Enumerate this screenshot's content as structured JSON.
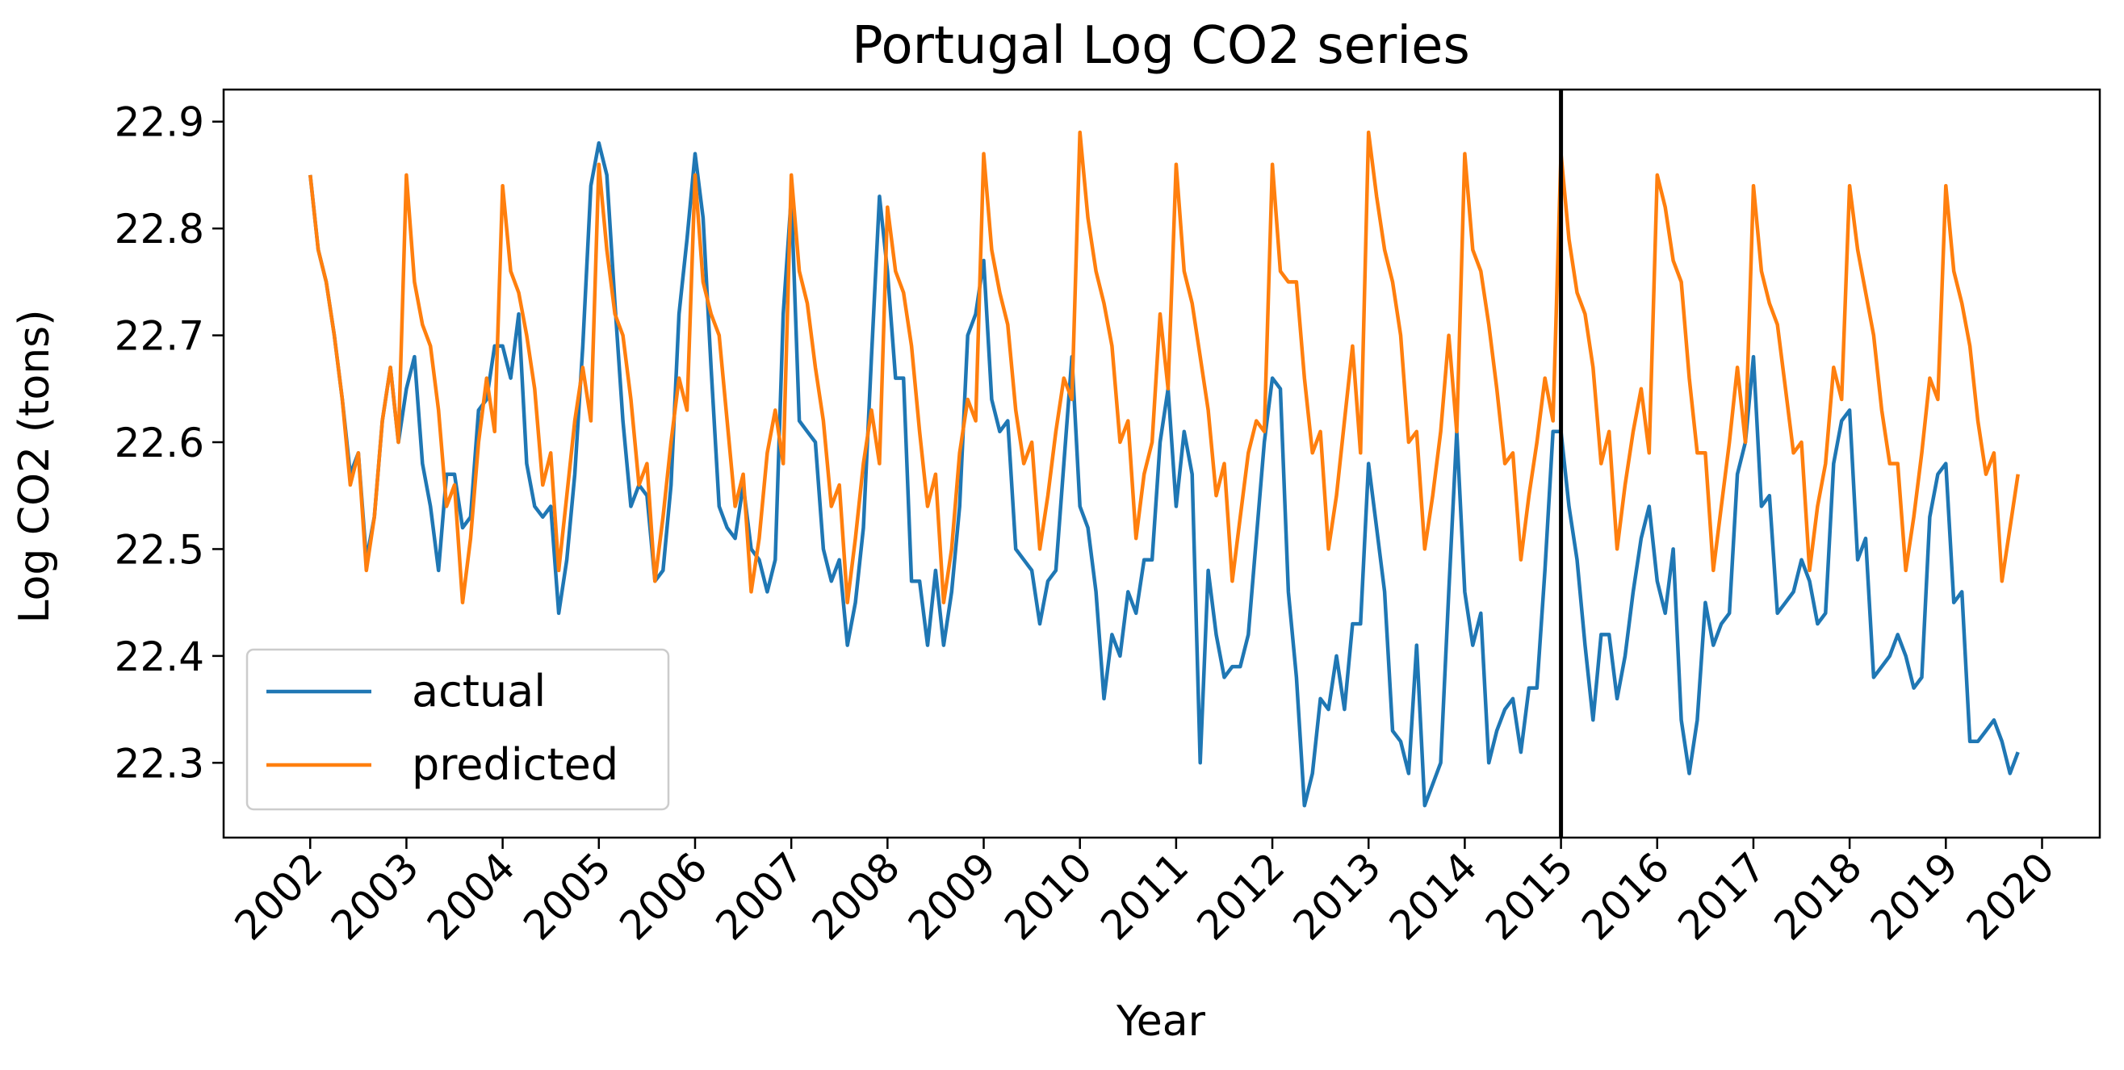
{
  "chart_data": {
    "type": "line",
    "title": "Portugal Log CO2 series",
    "xlabel": "Year",
    "ylabel": "Log CO2 (tons)",
    "xlim": [
      2001.1,
      2020.6
    ],
    "ylim": [
      22.23,
      22.93
    ],
    "x_ticks": [
      "2002",
      "2003",
      "2004",
      "2005",
      "2006",
      "2007",
      "2008",
      "2009",
      "2010",
      "2011",
      "2012",
      "2013",
      "2014",
      "2015",
      "2016",
      "2017",
      "2018",
      "2019",
      "2020"
    ],
    "y_ticks": [
      "22.3",
      "22.4",
      "22.5",
      "22.6",
      "22.7",
      "22.8",
      "22.9"
    ],
    "grid": false,
    "legend_position": "lower-left",
    "vline": {
      "x": 2015,
      "color": "#000000"
    },
    "x_start": 2002,
    "x_step_months": 1,
    "series": [
      {
        "name": "actual",
        "color": "#1f77b4",
        "values": [
          22.85,
          22.78,
          22.75,
          22.7,
          22.64,
          22.57,
          22.59,
          22.49,
          22.53,
          22.62,
          22.67,
          22.6,
          22.65,
          22.68,
          22.58,
          22.54,
          22.48,
          22.57,
          22.57,
          22.52,
          22.53,
          22.63,
          22.64,
          22.69,
          22.69,
          22.66,
          22.72,
          22.58,
          22.54,
          22.53,
          22.54,
          22.44,
          22.49,
          22.57,
          22.69,
          22.84,
          22.88,
          22.85,
          22.73,
          22.62,
          22.54,
          22.56,
          22.55,
          22.47,
          22.48,
          22.56,
          22.72,
          22.79,
          22.87,
          22.81,
          22.67,
          22.54,
          22.52,
          22.51,
          22.56,
          22.5,
          22.49,
          22.46,
          22.49,
          22.72,
          22.83,
          22.62,
          22.61,
          22.6,
          22.5,
          22.47,
          22.49,
          22.41,
          22.45,
          22.52,
          22.68,
          22.83,
          22.76,
          22.66,
          22.66,
          22.47,
          22.47,
          22.41,
          22.48,
          22.41,
          22.46,
          22.54,
          22.7,
          22.72,
          22.77,
          22.64,
          22.61,
          22.62,
          22.5,
          22.49,
          22.48,
          22.43,
          22.47,
          22.48,
          22.58,
          22.68,
          22.54,
          22.52,
          22.46,
          22.36,
          22.42,
          22.4,
          22.46,
          22.44,
          22.49,
          22.49,
          22.6,
          22.65,
          22.54,
          22.61,
          22.57,
          22.3,
          22.48,
          22.42,
          22.38,
          22.39,
          22.39,
          22.42,
          22.51,
          22.6,
          22.66,
          22.65,
          22.46,
          22.38,
          22.26,
          22.29,
          22.36,
          22.35,
          22.4,
          22.35,
          22.43,
          22.43,
          22.58,
          22.52,
          22.46,
          22.33,
          22.32,
          22.29,
          22.41,
          22.26,
          22.28,
          22.3,
          22.46,
          22.61,
          22.46,
          22.41,
          22.44,
          22.3,
          22.33,
          22.35,
          22.36,
          22.31,
          22.37,
          22.37,
          22.48,
          22.61,
          22.61,
          22.54,
          22.49,
          22.41,
          22.34,
          22.42,
          22.42,
          22.36,
          22.4,
          22.46,
          22.51,
          22.54,
          22.47,
          22.44,
          22.5,
          22.34,
          22.29,
          22.34,
          22.45,
          22.41,
          22.43,
          22.44,
          22.57,
          22.6,
          22.68,
          22.54,
          22.55,
          22.44,
          22.45,
          22.46,
          22.49,
          22.47,
          22.43,
          22.44,
          22.58,
          22.62,
          22.63,
          22.49,
          22.51,
          22.38,
          22.39,
          22.4,
          22.42,
          22.4,
          22.37,
          22.38,
          22.53,
          22.57,
          22.58,
          22.45,
          22.46,
          22.32,
          22.32,
          22.33,
          22.34,
          22.32,
          22.29,
          22.31
        ]
      },
      {
        "name": "predicted",
        "color": "#ff7f0e",
        "values": [
          22.85,
          22.78,
          22.75,
          22.7,
          22.64,
          22.56,
          22.59,
          22.48,
          22.53,
          22.62,
          22.67,
          22.6,
          22.85,
          22.75,
          22.71,
          22.69,
          22.63,
          22.54,
          22.56,
          22.45,
          22.51,
          22.6,
          22.66,
          22.61,
          22.84,
          22.76,
          22.74,
          22.7,
          22.65,
          22.56,
          22.59,
          22.48,
          22.55,
          22.62,
          22.67,
          22.62,
          22.86,
          22.78,
          22.72,
          22.7,
          22.64,
          22.56,
          22.58,
          22.47,
          22.53,
          22.6,
          22.66,
          22.63,
          22.85,
          22.75,
          22.72,
          22.7,
          22.62,
          22.54,
          22.57,
          22.46,
          22.51,
          22.59,
          22.63,
          22.58,
          22.85,
          22.76,
          22.73,
          22.67,
          22.62,
          22.54,
          22.56,
          22.45,
          22.51,
          22.58,
          22.63,
          22.58,
          22.82,
          22.76,
          22.74,
          22.69,
          22.61,
          22.54,
          22.57,
          22.45,
          22.5,
          22.59,
          22.64,
          22.62,
          22.87,
          22.78,
          22.74,
          22.71,
          22.63,
          22.58,
          22.6,
          22.5,
          22.55,
          22.61,
          22.66,
          22.64,
          22.89,
          22.81,
          22.76,
          22.73,
          22.69,
          22.6,
          22.62,
          22.51,
          22.57,
          22.6,
          22.72,
          22.65,
          22.86,
          22.76,
          22.73,
          22.68,
          22.63,
          22.55,
          22.58,
          22.47,
          22.53,
          22.59,
          22.62,
          22.61,
          22.86,
          22.76,
          22.75,
          22.75,
          22.66,
          22.59,
          22.61,
          22.5,
          22.55,
          22.62,
          22.69,
          22.59,
          22.89,
          22.83,
          22.78,
          22.75,
          22.7,
          22.6,
          22.61,
          22.5,
          22.55,
          22.61,
          22.7,
          22.61,
          22.87,
          22.78,
          22.76,
          22.71,
          22.65,
          22.58,
          22.59,
          22.49,
          22.55,
          22.6,
          22.66,
          22.62,
          22.87,
          22.79,
          22.74,
          22.72,
          22.67,
          22.58,
          22.61,
          22.5,
          22.56,
          22.61,
          22.65,
          22.59,
          22.85,
          22.82,
          22.77,
          22.75,
          22.66,
          22.59,
          22.59,
          22.48,
          22.54,
          22.6,
          22.67,
          22.6,
          22.84,
          22.76,
          22.73,
          22.71,
          22.65,
          22.59,
          22.6,
          22.48,
          22.54,
          22.58,
          22.67,
          22.64,
          22.84,
          22.78,
          22.74,
          22.7,
          22.63,
          22.58,
          22.58,
          22.48,
          22.53,
          22.59,
          22.66,
          22.64,
          22.84,
          22.76,
          22.73,
          22.69,
          22.62,
          22.57,
          22.59,
          22.47,
          22.52,
          22.57
        ]
      }
    ]
  }
}
